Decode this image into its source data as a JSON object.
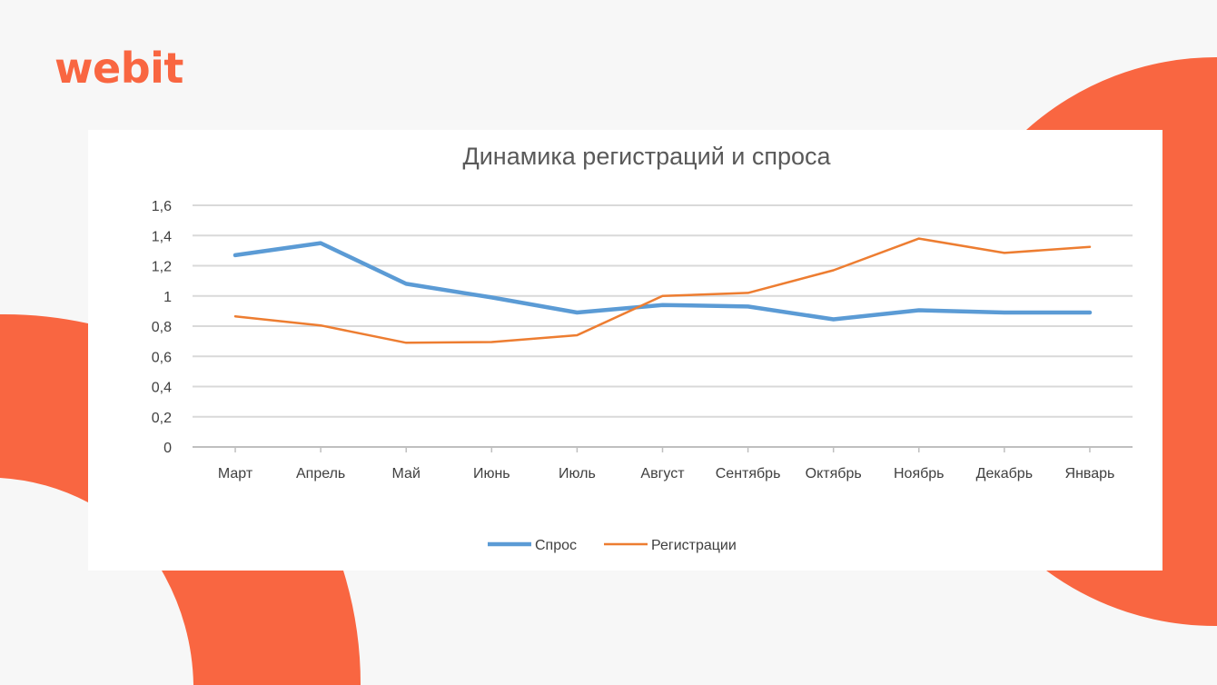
{
  "brand": {
    "logo_text": "webit",
    "accent_color": "#F96641"
  },
  "chart_data": {
    "type": "line",
    "title": "Динамика регистраций и спроса",
    "xlabel": "",
    "ylabel": "",
    "categories": [
      "Март",
      "Апрель",
      "Май",
      "Июнь",
      "Июль",
      "Август",
      "Сентябрь",
      "Октябрь",
      "Ноябрь",
      "Декабрь",
      "Январь"
    ],
    "series": [
      {
        "name": "Спрос",
        "color": "#5B9BD5",
        "values": [
          1.27,
          1.35,
          1.08,
          0.99,
          0.89,
          0.94,
          0.93,
          0.845,
          0.905,
          0.89,
          0.89
        ]
      },
      {
        "name": "Регистрации",
        "color": "#ED7D31",
        "values": [
          0.865,
          0.805,
          0.69,
          0.695,
          0.74,
          1.0,
          1.02,
          1.17,
          1.38,
          1.285,
          1.325
        ]
      }
    ],
    "ylim": [
      0,
      1.6
    ],
    "y_ticks": [
      "0",
      "0,2",
      "0,4",
      "0,6",
      "0,8",
      "1",
      "1,2",
      "1,4",
      "1,6"
    ],
    "grid": true,
    "legend_position": "bottom"
  }
}
